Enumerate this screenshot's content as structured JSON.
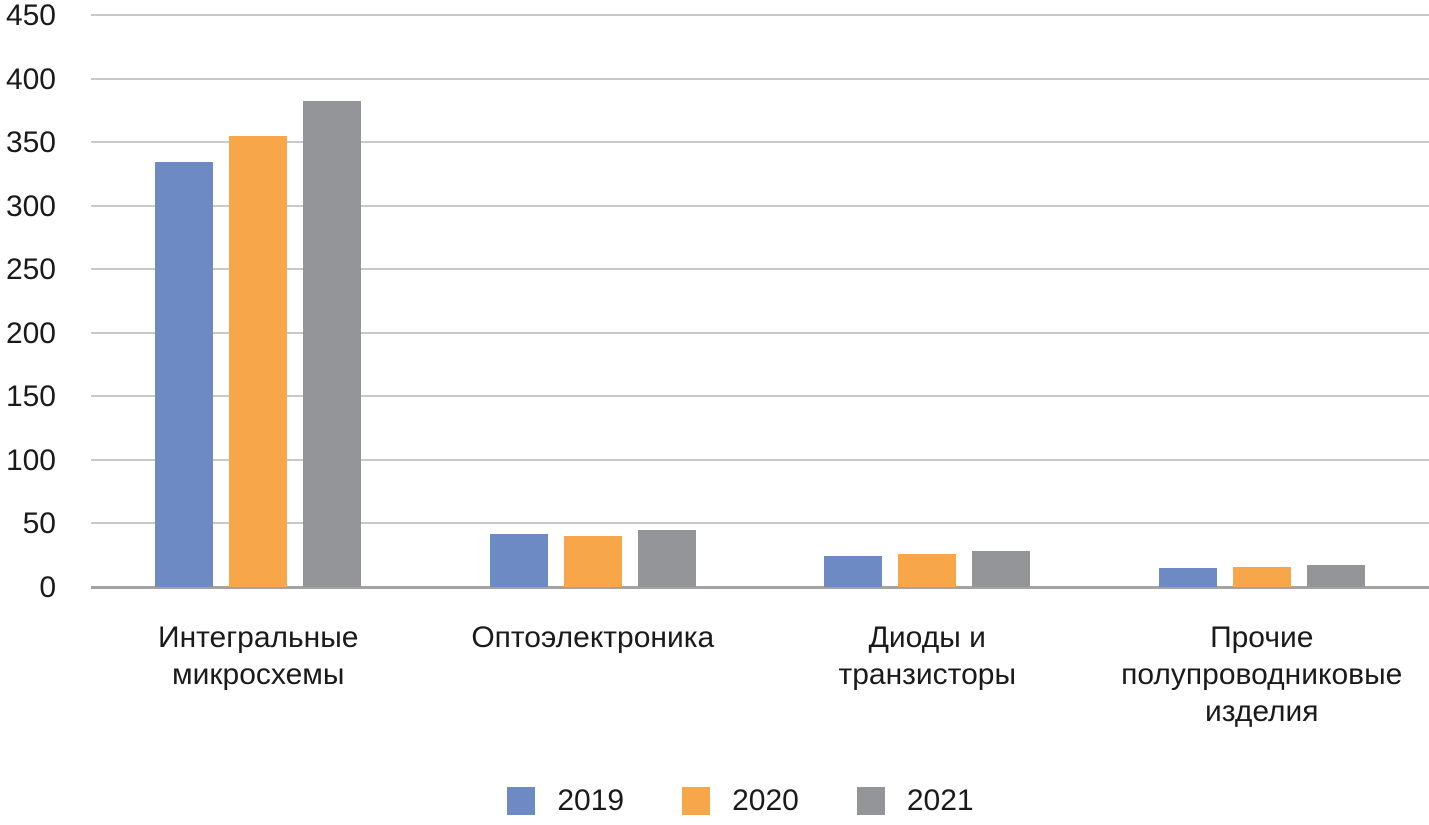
{
  "chart_data": {
    "type": "bar",
    "title": "",
    "xlabel": "",
    "ylabel": "",
    "categories": [
      "Интегральные микросхемы",
      "Оптоэлектроника",
      "Диоды и транзисторы",
      "Прочие полупроводниковые изделия"
    ],
    "series": [
      {
        "name": "2019",
        "color": "#6d8ac5",
        "values": [
          334,
          42,
          24,
          15
        ]
      },
      {
        "name": "2020",
        "color": "#f7a74a",
        "values": [
          355,
          40,
          26,
          16
        ]
      },
      {
        "name": "2021",
        "color": "#939598",
        "values": [
          382,
          45,
          28,
          17
        ]
      }
    ],
    "ylim": [
      0,
      450
    ],
    "ytick_step": 50,
    "ytick_labels": [
      "0",
      "50",
      "100",
      "150",
      "200",
      "250",
      "300",
      "350",
      "400",
      "450"
    ],
    "grid": true,
    "legend_position": "bottom"
  },
  "colors": {
    "gridline": "#c9c9c9",
    "baseline": "#a3a3a3",
    "text": "#1a1a1a",
    "background": "#ffffff"
  }
}
